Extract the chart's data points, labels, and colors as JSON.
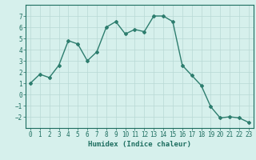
{
  "x": [
    0,
    1,
    2,
    3,
    4,
    5,
    6,
    7,
    8,
    9,
    10,
    11,
    12,
    13,
    14,
    15,
    16,
    17,
    18,
    19,
    20,
    21,
    22,
    23
  ],
  "y": [
    1.0,
    1.8,
    1.5,
    2.6,
    4.8,
    4.5,
    3.0,
    3.8,
    6.0,
    6.5,
    5.4,
    5.8,
    5.6,
    7.0,
    7.0,
    6.5,
    2.6,
    1.7,
    0.8,
    -1.1,
    -2.1,
    -2.0,
    -2.1,
    -2.5
  ],
  "line_color": "#2d7d6e",
  "marker": "D",
  "marker_size": 2,
  "line_width": 1.0,
  "xlabel": "Humidex (Indice chaleur)",
  "ylim": [
    -3,
    8
  ],
  "xlim": [
    -0.5,
    23.5
  ],
  "yticks": [
    -2,
    -1,
    0,
    1,
    2,
    3,
    4,
    5,
    6,
    7
  ],
  "xticks": [
    0,
    1,
    2,
    3,
    4,
    5,
    6,
    7,
    8,
    9,
    10,
    11,
    12,
    13,
    14,
    15,
    16,
    17,
    18,
    19,
    20,
    21,
    22,
    23
  ],
  "bg_color": "#d6f0ec",
  "grid_color": "#b8d8d4",
  "tick_label_size": 5.5,
  "xlabel_size": 6.5,
  "tick_color": "#1e6e60",
  "spine_color": "#1e6e60"
}
